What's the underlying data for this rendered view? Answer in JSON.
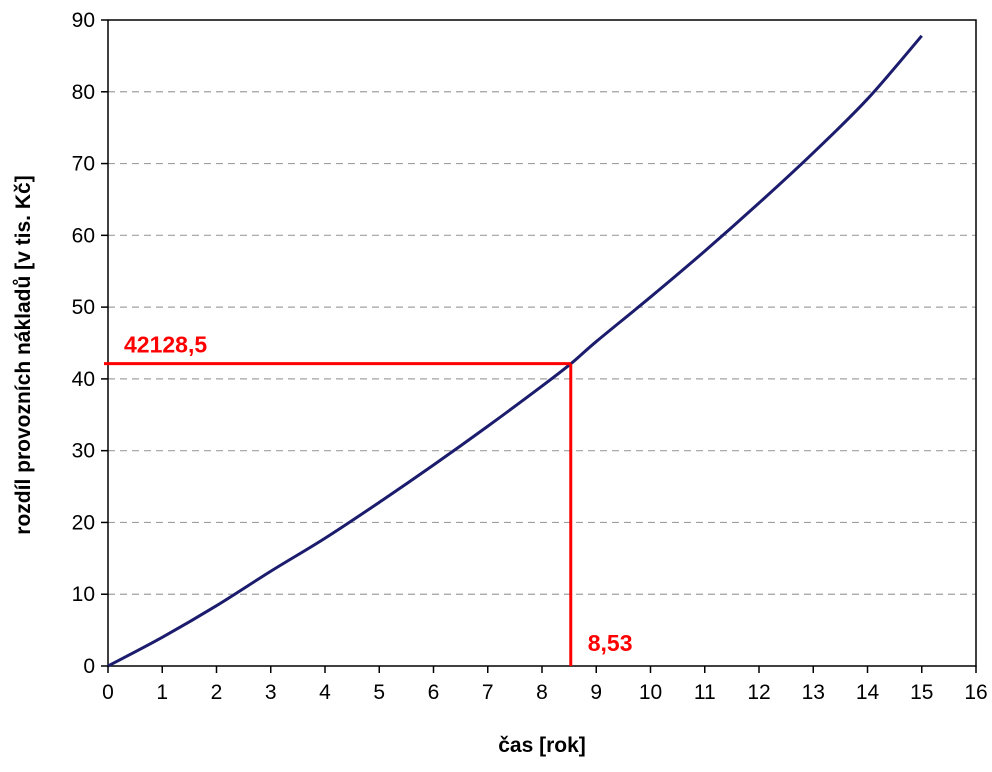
{
  "chart_data": {
    "type": "line",
    "xlabel": "čas [rok]",
    "ylabel": "rozdíl provozních nákladů [v tis. Kč]",
    "xlim": [
      0,
      16
    ],
    "ylim": [
      0,
      90
    ],
    "x_ticks": [
      "0",
      "1",
      "2",
      "3",
      "4",
      "5",
      "6",
      "7",
      "8",
      "9",
      "10",
      "11",
      "12",
      "13",
      "14",
      "15",
      "16"
    ],
    "y_ticks": [
      "0",
      "10",
      "20",
      "30",
      "40",
      "50",
      "60",
      "70",
      "80",
      "90"
    ],
    "grid": "horizontal dashed",
    "legend": "none",
    "series": [
      {
        "color": "#1c1c6e",
        "x": [
          0,
          1,
          2,
          3,
          4,
          5,
          6,
          7,
          8,
          8.53,
          9,
          10,
          11,
          12,
          13,
          14,
          15
        ],
        "y": [
          0,
          4.0,
          8.4,
          13.2,
          17.8,
          22.8,
          28.0,
          33.4,
          39.0,
          42.1,
          45.2,
          51.4,
          57.8,
          64.5,
          71.5,
          79.0,
          87.8
        ]
      }
    ],
    "annotations": {
      "intersection_x": 8.53,
      "intersection_y": 42.1285,
      "x_label": "8,53",
      "y_label": "42128,5",
      "color": "#ff0000"
    }
  }
}
